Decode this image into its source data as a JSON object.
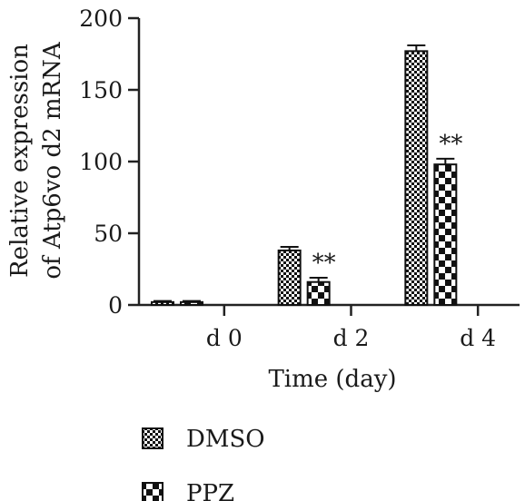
{
  "chart_data": {
    "type": "bar",
    "title": "",
    "xlabel": "Time (day)",
    "ylabel_lines": [
      "Relative expression",
      "of Atp6vo d2 mRNA"
    ],
    "categories": [
      "d 0",
      "d 2",
      "d 4"
    ],
    "ylim": [
      0,
      200
    ],
    "yticks": [
      "0",
      "50",
      "100",
      "150",
      "200"
    ],
    "grid": false,
    "legend_position": "bottom-left",
    "series": [
      {
        "name": "DMSO",
        "pattern": "fine-checker",
        "values": [
          2,
          38,
          177
        ],
        "errors": [
          0.8,
          2.5,
          4
        ],
        "annotations": [
          "",
          "",
          ""
        ]
      },
      {
        "name": "PPZ",
        "pattern": "coarse-checker",
        "values": [
          2,
          16,
          98
        ],
        "errors": [
          0.8,
          3,
          4
        ],
        "annotations": [
          "",
          "**",
          "**"
        ]
      }
    ]
  }
}
